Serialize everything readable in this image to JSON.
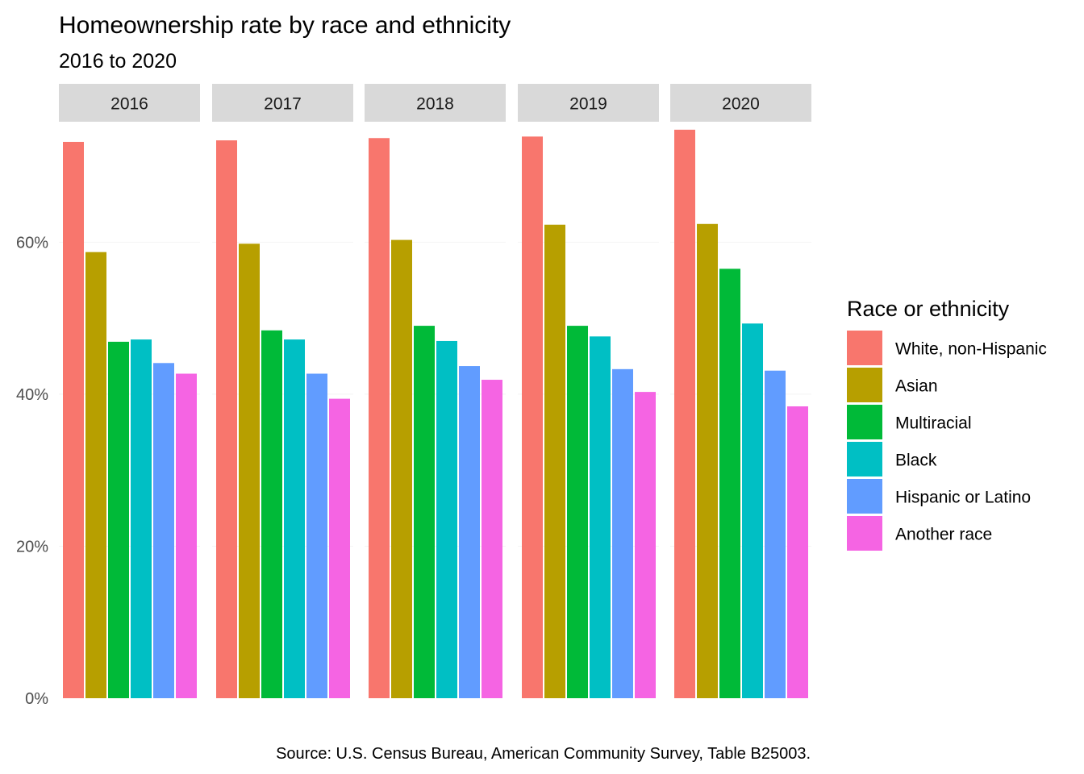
{
  "chart_data": {
    "type": "bar",
    "title": "Homeownership rate by race and ethnicity",
    "subtitle": "2016 to 2020",
    "caption": "Source: U.S. Census Bureau, American Community Survey, Table B25003.",
    "facets": [
      "2016",
      "2017",
      "2018",
      "2019",
      "2020"
    ],
    "legend": {
      "title": "Race or ethnicity",
      "position": "right"
    },
    "ylim": [
      0,
      75
    ],
    "yticks": [
      {
        "value": 0,
        "label": "0%"
      },
      {
        "value": 20,
        "label": "20%"
      },
      {
        "value": 40,
        "label": "40%"
      },
      {
        "value": 60,
        "label": "60%"
      }
    ],
    "grid": false,
    "series": [
      {
        "name": "White, non-Hispanic",
        "color": "#F8766D",
        "values": [
          73.2,
          73.4,
          73.7,
          73.9,
          74.8
        ]
      },
      {
        "name": "Asian",
        "color": "#B79F00",
        "values": [
          58.7,
          59.8,
          60.3,
          62.3,
          62.4
        ]
      },
      {
        "name": "Multiracial",
        "color": "#00BA38",
        "values": [
          46.9,
          48.4,
          49.0,
          49.0,
          56.5
        ]
      },
      {
        "name": "Black",
        "color": "#00BFC4",
        "values": [
          47.2,
          47.2,
          47.0,
          47.6,
          49.3
        ]
      },
      {
        "name": "Hispanic or Latino",
        "color": "#619CFF",
        "values": [
          44.1,
          42.7,
          43.7,
          43.3,
          43.1
        ]
      },
      {
        "name": "Another race",
        "color": "#F564E3",
        "values": [
          42.7,
          39.4,
          41.9,
          40.3,
          38.4
        ]
      }
    ]
  }
}
